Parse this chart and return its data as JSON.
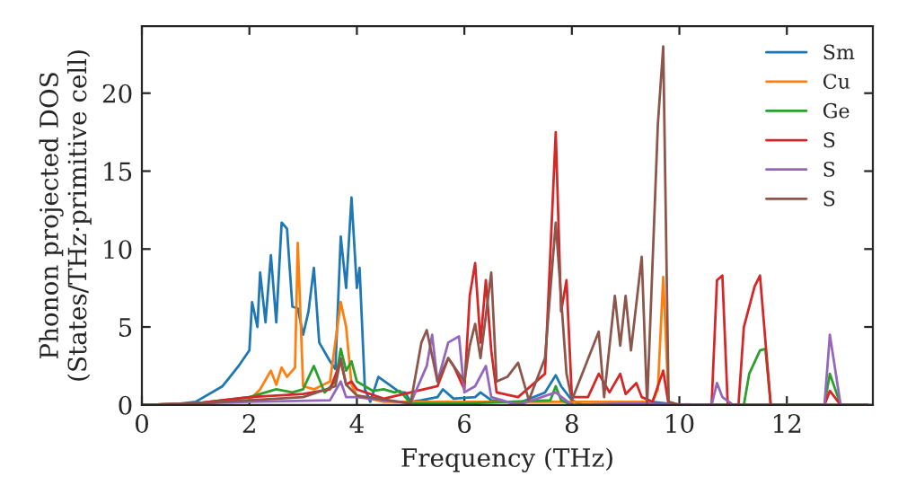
{
  "chart_data": {
    "type": "line",
    "xlabel": "Frequency (THz)",
    "ylabel": "Phonon projected DOS\n(States/THz·primitive cell)",
    "xlim": [
      0,
      13.6
    ],
    "ylim": [
      0,
      24.3
    ],
    "xticks": [
      0,
      2,
      4,
      6,
      8,
      10,
      12
    ],
    "yticks": [
      0,
      5,
      10,
      15,
      20
    ],
    "legend": "top right",
    "grid": false,
    "series": [
      {
        "name": "Sm",
        "color": "#1f77b4",
        "x": [
          0,
          0.5,
          1,
          1.5,
          1.8,
          2.0,
          2.05,
          2.15,
          2.2,
          2.3,
          2.4,
          2.5,
          2.6,
          2.7,
          2.8,
          2.9,
          3.0,
          3.1,
          3.2,
          3.3,
          3.5,
          3.6,
          3.7,
          3.8,
          3.9,
          4.0,
          4.05,
          4.15,
          4.25,
          4.4,
          4.6,
          4.8,
          4.9,
          5.0,
          5.2,
          5.5,
          5.6,
          5.8,
          6.2,
          6.3,
          6.5,
          7.0,
          7.5,
          7.7,
          7.8,
          8.0,
          8.2,
          9.0,
          9.5,
          10,
          13.5
        ],
        "values": [
          0,
          0,
          0.2,
          1.2,
          2.5,
          3.5,
          6.6,
          5,
          8.5,
          5.3,
          9.6,
          5.3,
          11.7,
          11.3,
          6.3,
          6.2,
          4.5,
          6,
          8.8,
          4,
          2.8,
          2.3,
          10.8,
          7.5,
          13.3,
          7.5,
          8.8,
          1,
          0.2,
          1.8,
          1.3,
          0.8,
          0.8,
          0.2,
          0.3,
          0.5,
          1,
          0.4,
          0.5,
          0.8,
          0.3,
          0.1,
          0.8,
          1.9,
          1.2,
          0.3,
          0,
          0.1,
          0.2,
          0,
          0
        ]
      },
      {
        "name": "Cu",
        "color": "#ff7f0e",
        "x": [
          0,
          1,
          2,
          2.2,
          2.4,
          2.5,
          2.6,
          2.7,
          2.85,
          2.9,
          3.0,
          3.2,
          3.5,
          3.7,
          3.8,
          3.9,
          4.0,
          4.5,
          5,
          9.5,
          9.6,
          9.7,
          9.8,
          10,
          13.5
        ],
        "values": [
          0,
          0.1,
          0.3,
          1,
          2.2,
          1.3,
          2.4,
          1.8,
          2.4,
          10.4,
          1.2,
          1.0,
          1.5,
          6.6,
          5,
          1.3,
          0.6,
          0.2,
          0.2,
          0.2,
          1,
          8.2,
          0.2,
          0,
          0
        ]
      },
      {
        "name": "Ge",
        "color": "#2ca02c",
        "x": [
          0,
          1,
          2,
          2.5,
          2.8,
          3.0,
          3.2,
          3.4,
          3.6,
          3.7,
          3.8,
          3.9,
          4.0,
          4.3,
          4.5,
          4.7,
          4.8,
          5.0,
          6,
          7.6,
          7.7,
          7.8,
          8.0,
          11.2,
          11.3,
          11.5,
          11.6,
          11.7,
          12.7,
          12.8,
          13.0,
          13.5
        ],
        "values": [
          0,
          0.1,
          0.5,
          1,
          0.8,
          1,
          2.5,
          0.8,
          1.5,
          3.6,
          2.2,
          2.8,
          1.5,
          0.9,
          1.0,
          0.8,
          0.9,
          0.1,
          0.1,
          0.3,
          1.2,
          0.3,
          0,
          0,
          2,
          3.5,
          3.6,
          0,
          0,
          2.0,
          0,
          0
        ]
      },
      {
        "name": "S",
        "color": "#d62728",
        "x": [
          0,
          1,
          2,
          3.0,
          3.5,
          3.7,
          3.8,
          3.9,
          4.0,
          4.5,
          5.5,
          5.7,
          5.8,
          6.0,
          6.1,
          6.2,
          6.3,
          6.4,
          6.5,
          6.6,
          7.0,
          7.5,
          7.7,
          7.8,
          7.9,
          8.0,
          8.3,
          8.5,
          8.7,
          8.9,
          9.0,
          9.2,
          9.3,
          9.5,
          9.7,
          9.8,
          10.6,
          10.7,
          10.8,
          10.9,
          11.1,
          11.2,
          11.4,
          11.5,
          11.7,
          12.7,
          12.8,
          13,
          13.5
        ],
        "values": [
          0,
          0.1,
          0.5,
          0.7,
          1.0,
          2.8,
          1.3,
          1.5,
          1.0,
          0.4,
          1.2,
          3.0,
          2.5,
          1.0,
          7,
          9.1,
          4,
          8,
          3.5,
          0.8,
          0.5,
          2,
          17.5,
          6,
          8,
          0.5,
          0.5,
          2,
          0.8,
          2.0,
          0.7,
          1.4,
          0.5,
          0.2,
          2.2,
          0,
          0,
          8.0,
          8.3,
          0,
          0,
          5,
          7.6,
          8.3,
          0,
          0,
          0.9,
          0,
          0
        ]
      },
      {
        "name": "S",
        "color": "#9467bd",
        "x": [
          0,
          1,
          2,
          3.5,
          3.7,
          3.8,
          4.0,
          5.0,
          5.3,
          5.4,
          5.5,
          5.7,
          5.9,
          6.0,
          6.2,
          6.4,
          6.5,
          7,
          7.7,
          8,
          9,
          10.6,
          10.7,
          10.8,
          11,
          12.7,
          12.8,
          13,
          13.5
        ],
        "values": [
          0,
          0.1,
          0.2,
          0.3,
          1.5,
          0.5,
          0.5,
          0.1,
          2.5,
          4.5,
          1.5,
          4,
          4.4,
          0.8,
          1.2,
          2.5,
          0.5,
          0,
          0.8,
          0,
          0.1,
          0,
          1.4,
          0.5,
          0,
          0,
          4.5,
          0,
          0
        ]
      },
      {
        "name": "S",
        "color": "#8c564b",
        "x": [
          0,
          1,
          2,
          3,
          3.6,
          3.7,
          3.8,
          4.0,
          5,
          5.2,
          5.3,
          5.5,
          5.7,
          5.8,
          6.0,
          6.1,
          6.2,
          6.3,
          6.5,
          6.6,
          6.8,
          7.0,
          7.2,
          7.5,
          7.7,
          7.9,
          8.0,
          8.5,
          8.6,
          8.8,
          8.9,
          9.0,
          9.1,
          9.3,
          9.4,
          9.6,
          9.7,
          9.8,
          10,
          13.5
        ],
        "values": [
          0,
          0.1,
          0.3,
          0.5,
          1.2,
          3,
          1.3,
          0.6,
          0.1,
          4,
          4.8,
          1.5,
          3,
          2.5,
          1.5,
          3.8,
          5.2,
          3,
          8.5,
          1.5,
          1.8,
          2.7,
          0.3,
          3,
          11.7,
          2,
          0.3,
          4.7,
          0.5,
          7,
          3.8,
          7,
          3.5,
          9.5,
          0,
          18,
          23,
          0.2,
          0,
          0
        ]
      }
    ]
  }
}
